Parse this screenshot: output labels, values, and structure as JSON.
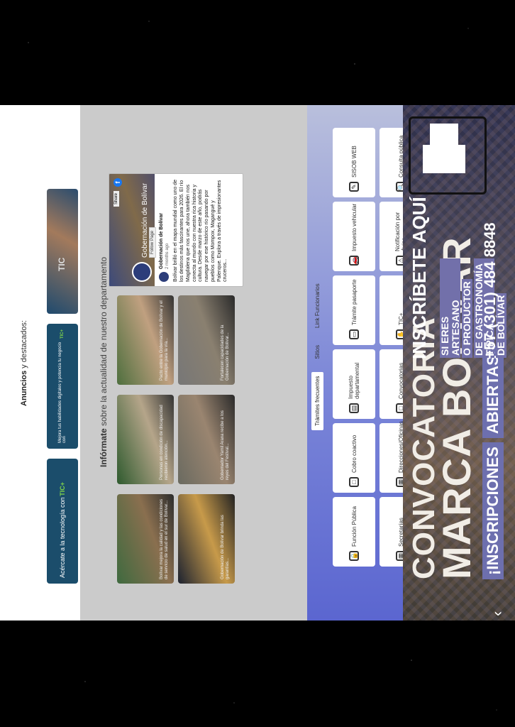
{
  "hero": {
    "title_line1": "CONVOCATORIA",
    "title_line2": "MARCA BOLIVAR",
    "subtitle_a": "¡INSCRIPCIONES",
    "subtitle_b": "ABIERTAS!",
    "artisan_lines": [
      "SI ERES ARTESANO",
      "O PRODUCTOR",
      "DE GASTRONOMÍA TÍPICA",
      "DE BOLÍVAR"
    ],
    "cta": "INSCRÍBETE AQUÍ",
    "phone": "+57 (301) 484 8848",
    "nav_arrow": "‹"
  },
  "tramites": {
    "tabs": [
      "Trámites frecuentes",
      "Sitios",
      "Link Funcionarios"
    ],
    "cards": [
      {
        "label": "Función Pública",
        "icon": "🔒"
      },
      {
        "label": "Cobro coactivo",
        "icon": "□"
      },
      {
        "label": "Impuesto departamental",
        "icon": "▤"
      },
      {
        "label": "Trámite pasaporte",
        "icon": "▭"
      },
      {
        "label": "Impuesto vehicular",
        "icon": "🚗"
      },
      {
        "label": "SISOB WEB",
        "icon": "✎"
      },
      {
        "label": "Secretarías",
        "icon": "▦"
      },
      {
        "label": "Direcciones/Oficinas",
        "icon": "▦"
      },
      {
        "label": "Convocatorias",
        "icon": "□"
      },
      {
        "label": "TIC+",
        "icon": "✋"
      },
      {
        "label": "Notificación por Aviso",
        "icon": "⚠"
      },
      {
        "label": "Consulta pública",
        "icon": "🔍"
      }
    ]
  },
  "news": {
    "title_bold": "Infórmate",
    "title_rest": " sobre la actualidad de nuestro departamento",
    "cards": [
      {
        "text": "Bolívar mejora la calidad y las condiciones de servicio de salud en el sur de Bolívar..."
      },
      {
        "text": "Personas en condición de discapacidad recibieron atención..."
      },
      {
        "text": "Pacto entre la Gobernación de Bolívar y el municipio para la vía..."
      },
      {
        "text": "Gobernación de Bolívar brinda las garantías..."
      },
      {
        "text": "Gobernador Yamil Arana recibe a los reyes del Festival..."
      },
      {
        "text": "Fortalecen capacidades de la Gobernación de Bolívar..."
      }
    ],
    "facebook": {
      "page_name": "Gobernación de Bolívar",
      "follow": "Follow Page",
      "share": "Share",
      "post_author": "Gobernación de Bolívar",
      "post_ago": "2 months ago",
      "post_text": "Bolívar brilló en el mapa mundial como uno de los destinos más fascinantes para 2026. El río Magdalena que nos une, ahora también nos conecta al mundo con nuestra rica historia y cultura. Desde marzo de este año, podrás navegar por ese histórico río pasando por pueblos como Mompox, Magangué y Palenque. Explora a través de impresionantes cruceros..."
    }
  },
  "ads": {
    "title_bold": "Anuncios",
    "title_rest": " y destacados:",
    "items": [
      {
        "type": "photo",
        "text": "TIC"
      },
      {
        "type": "blue",
        "text": "Mejora tus habilidades digitales y potencia tu negocio con",
        "tic": "TIC+"
      },
      {
        "type": "blue",
        "text": "Acércate a la tecnología con",
        "tic": "TIC+"
      }
    ]
  }
}
